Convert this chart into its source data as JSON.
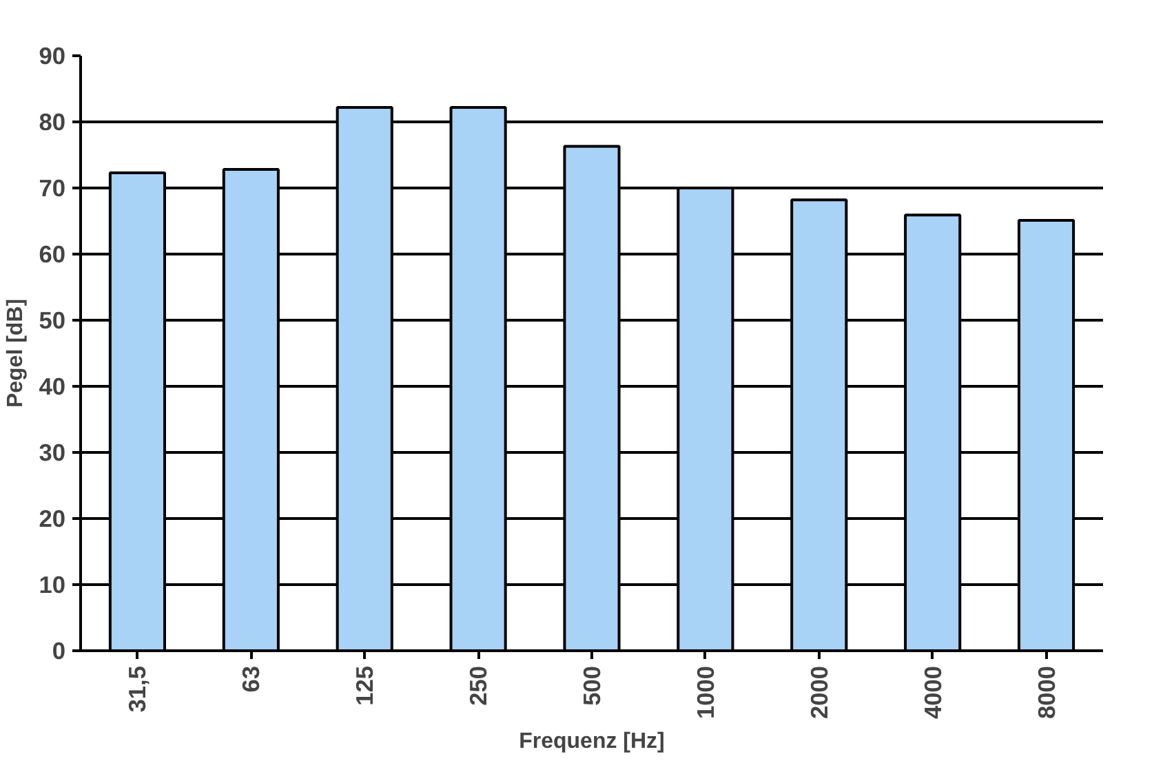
{
  "chart_data": {
    "type": "bar",
    "xlabel": "Frequenz [Hz]",
    "ylabel": "Pegel [dB]",
    "categories": [
      "31,5",
      "63",
      "125",
      "250",
      "500",
      "1000",
      "2000",
      "4000",
      "8000"
    ],
    "values": [
      72.3,
      72.8,
      82.2,
      82.2,
      76.3,
      70,
      68.2,
      65.9,
      65.1
    ],
    "color": "#a9d2f7",
    "ylim": [
      0,
      90
    ],
    "yticks": [
      0,
      10,
      20,
      30,
      40,
      50,
      60,
      70,
      80,
      90
    ],
    "grid": "y"
  }
}
